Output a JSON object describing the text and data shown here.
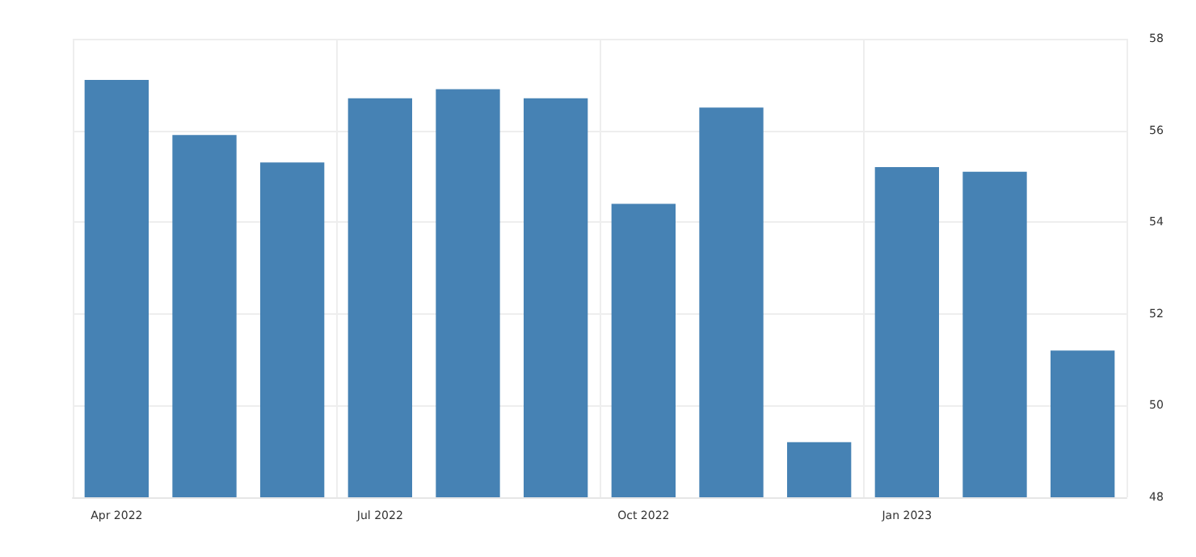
{
  "chart_data": {
    "type": "bar",
    "categories": [
      "Apr 2022",
      null,
      null,
      "Jul 2022",
      null,
      null,
      "Oct 2022",
      null,
      null,
      "Jan 2023",
      null,
      null
    ],
    "values": [
      57.1,
      55.9,
      55.3,
      56.7,
      56.9,
      56.7,
      54.4,
      56.5,
      49.2,
      55.2,
      55.1,
      51.2
    ],
    "color": "#4682b4",
    "ylim": [
      48,
      58
    ],
    "yticks": [
      48,
      50,
      52,
      54,
      56,
      58
    ],
    "grid": true
  }
}
